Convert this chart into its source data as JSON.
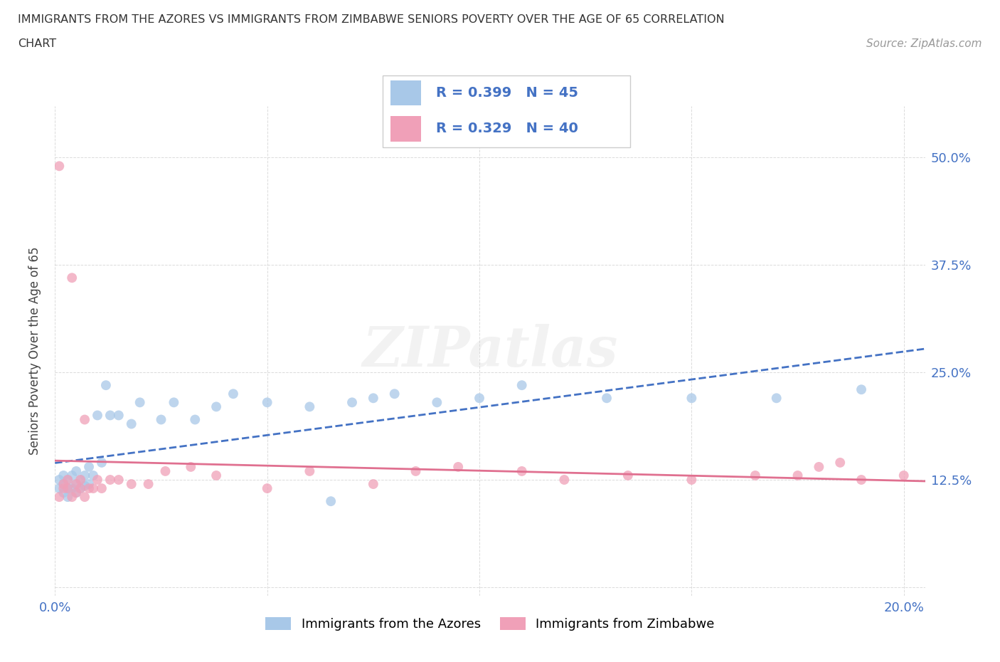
{
  "title_line1": "IMMIGRANTS FROM THE AZORES VS IMMIGRANTS FROM ZIMBABWE SENIORS POVERTY OVER THE AGE OF 65 CORRELATION",
  "title_line2": "CHART",
  "source": "Source: ZipAtlas.com",
  "ylabel": "Seniors Poverty Over the Age of 65",
  "xlim": [
    0.0,
    0.205
  ],
  "ylim": [
    -0.01,
    0.56
  ],
  "xtick_vals": [
    0.0,
    0.05,
    0.1,
    0.15,
    0.2
  ],
  "xticklabels": [
    "0.0%",
    "",
    "",
    "",
    "20.0%"
  ],
  "ytick_vals": [
    0.0,
    0.125,
    0.25,
    0.375,
    0.5
  ],
  "yticklabels": [
    "",
    "12.5%",
    "25.0%",
    "37.5%",
    "50.0%"
  ],
  "R_azores": 0.399,
  "N_azores": 45,
  "R_zimbabwe": 0.329,
  "N_zimbabwe": 40,
  "color_azores": "#a8c8e8",
  "color_zimbabwe": "#f0a0b8",
  "line_color_azores": "#4472c4",
  "line_color_zimbabwe": "#e07090",
  "dot_size": 100,
  "dot_alpha": 0.75,
  "azores_x": [
    0.001,
    0.001,
    0.002,
    0.002,
    0.002,
    0.003,
    0.003,
    0.003,
    0.004,
    0.004,
    0.005,
    0.005,
    0.005,
    0.006,
    0.006,
    0.007,
    0.007,
    0.008,
    0.008,
    0.009,
    0.01,
    0.011,
    0.012,
    0.013,
    0.015,
    0.018,
    0.02,
    0.025,
    0.028,
    0.033,
    0.038,
    0.042,
    0.05,
    0.06,
    0.065,
    0.07,
    0.075,
    0.08,
    0.09,
    0.1,
    0.11,
    0.13,
    0.15,
    0.17,
    0.19
  ],
  "azores_y": [
    0.115,
    0.125,
    0.11,
    0.12,
    0.13,
    0.105,
    0.115,
    0.125,
    0.115,
    0.13,
    0.11,
    0.12,
    0.135,
    0.115,
    0.125,
    0.118,
    0.13,
    0.12,
    0.14,
    0.13,
    0.2,
    0.145,
    0.235,
    0.2,
    0.2,
    0.19,
    0.215,
    0.195,
    0.215,
    0.195,
    0.21,
    0.225,
    0.215,
    0.21,
    0.1,
    0.215,
    0.22,
    0.225,
    0.215,
    0.22,
    0.235,
    0.22,
    0.22,
    0.22,
    0.23
  ],
  "zimbabwe_x": [
    0.001,
    0.001,
    0.002,
    0.002,
    0.003,
    0.003,
    0.004,
    0.004,
    0.005,
    0.005,
    0.006,
    0.006,
    0.007,
    0.007,
    0.008,
    0.009,
    0.01,
    0.011,
    0.013,
    0.015,
    0.018,
    0.022,
    0.026,
    0.032,
    0.038,
    0.05,
    0.06,
    0.075,
    0.085,
    0.095,
    0.11,
    0.12,
    0.135,
    0.15,
    0.165,
    0.175,
    0.18,
    0.185,
    0.19,
    0.2
  ],
  "zimbabwe_y": [
    0.105,
    0.49,
    0.115,
    0.12,
    0.115,
    0.125,
    0.105,
    0.36,
    0.11,
    0.12,
    0.115,
    0.125,
    0.105,
    0.195,
    0.115,
    0.115,
    0.125,
    0.115,
    0.125,
    0.125,
    0.12,
    0.12,
    0.135,
    0.14,
    0.13,
    0.115,
    0.135,
    0.12,
    0.135,
    0.14,
    0.135,
    0.125,
    0.13,
    0.125,
    0.13,
    0.13,
    0.14,
    0.145,
    0.125,
    0.13
  ]
}
